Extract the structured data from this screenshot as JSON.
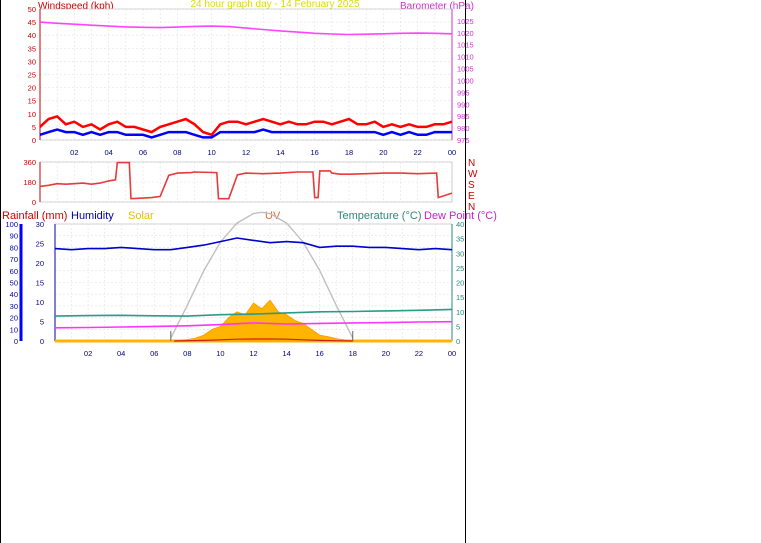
{
  "header": {
    "windspeed_label": "Windspeed (kph)",
    "title": "24 hour graph day - 14 February 2025",
    "barometer_label": "Barometer (hPa)"
  },
  "legend": {
    "rainfall": "Rainfall (mm)",
    "humidity": "Humidity",
    "solar": "Solar",
    "uv": "UV",
    "temperature": "Temperature (°C)",
    "dewpoint": "Dew Point (°C)"
  },
  "colors": {
    "grid": "#e2e2e2",
    "windspeed": "#ff0000",
    "gust": "#cc0000",
    "wind_avg": "#0000ff",
    "barometer": "#ff44ff",
    "direction": "#e83a3a",
    "humidity": "#0000cc",
    "temperature": "#2a9a8a",
    "dewpoint": "#ff33ff",
    "solar": "#ff9900",
    "solar_fill": "#ffb400",
    "uv": "#e07030",
    "solar_max": "#c0c0c0",
    "rain_axis": "#0000ff",
    "title": "#dddd00"
  },
  "chart_data": [
    {
      "type": "line",
      "name": "wind_barometer",
      "x_ticks": [
        "02",
        "04",
        "06",
        "08",
        "10",
        "12",
        "14",
        "16",
        "18",
        "20",
        "22",
        "00"
      ],
      "xlim": [
        0,
        24
      ],
      "ylim_left": [
        0,
        50
      ],
      "yticks_left": [
        "0",
        "5",
        "10",
        "15",
        "20",
        "25",
        "30",
        "35",
        "40",
        "45",
        "50"
      ],
      "ylim_right": [
        975,
        1030
      ],
      "yticks_right": [
        "975",
        "980",
        "985",
        "990",
        "995",
        "1000",
        "1005",
        "1010",
        "1015",
        "1020",
        "1025"
      ],
      "series": [
        {
          "key": "barometer",
          "x": [
            0,
            1,
            2,
            3,
            4,
            5,
            6,
            7,
            8,
            9,
            10,
            11,
            12,
            13,
            14,
            15,
            16,
            17,
            18,
            19,
            20,
            21,
            22,
            23,
            24
          ],
          "y": [
            1024.5,
            1024.0,
            1023.6,
            1023.2,
            1022.8,
            1022.5,
            1022.3,
            1022.2,
            1022.4,
            1022.7,
            1022.8,
            1022.6,
            1022.0,
            1021.4,
            1020.8,
            1020.3,
            1019.8,
            1019.5,
            1019.3,
            1019.4,
            1019.6,
            1019.8,
            1019.9,
            1019.8,
            1019.6
          ]
        },
        {
          "key": "gust",
          "x": [
            0,
            0.5,
            1,
            1.5,
            2,
            2.5,
            3,
            3.5,
            4,
            4.5,
            5,
            5.5,
            6,
            6.5,
            7,
            7.5,
            8,
            8.5,
            9,
            9.5,
            10,
            10.5,
            11,
            11.5,
            12,
            12.5,
            13,
            13.5,
            14,
            14.5,
            15,
            15.5,
            16,
            16.5,
            17,
            17.5,
            18,
            18.5,
            19,
            19.5,
            20,
            20.5,
            21,
            21.5,
            22,
            22.5,
            23,
            23.5,
            24
          ],
          "y": [
            5,
            8,
            9,
            6,
            7,
            5,
            6,
            4,
            6,
            7,
            5,
            5,
            4,
            3,
            5,
            6,
            7,
            8,
            6,
            3,
            2,
            6,
            7,
            7,
            6,
            7,
            8,
            7,
            6,
            7,
            6,
            6,
            7,
            7,
            6,
            7,
            8,
            6,
            6,
            7,
            5,
            6,
            5,
            6,
            5,
            5,
            6,
            6,
            7
          ]
        },
        {
          "key": "wind_avg",
          "x": [
            0,
            0.5,
            1,
            1.5,
            2,
            2.5,
            3,
            3.5,
            4,
            4.5,
            5,
            5.5,
            6,
            6.5,
            7,
            7.5,
            8,
            8.5,
            9,
            9.5,
            10,
            10.5,
            11,
            11.5,
            12,
            12.5,
            13,
            13.5,
            14,
            14.5,
            15,
            15.5,
            16,
            16.5,
            17,
            17.5,
            18,
            18.5,
            19,
            19.5,
            20,
            20.5,
            21,
            21.5,
            22,
            22.5,
            23,
            23.5,
            24
          ],
          "y": [
            2,
            3,
            4,
            3,
            3,
            2,
            3,
            2,
            3,
            3,
            2,
            2,
            2,
            1,
            2,
            3,
            3,
            3,
            2,
            1,
            1,
            3,
            3,
            3,
            3,
            3,
            4,
            3,
            3,
            3,
            3,
            3,
            3,
            3,
            3,
            3,
            3,
            3,
            3,
            3,
            2,
            3,
            2,
            3,
            2,
            2,
            3,
            3,
            3
          ]
        }
      ]
    },
    {
      "type": "line",
      "name": "wind_direction",
      "x_ticks": [
        "02",
        "04",
        "06",
        "08",
        "10",
        "12",
        "14",
        "16",
        "18",
        "20",
        "22",
        "00"
      ],
      "xlim": [
        0,
        24
      ],
      "ylim": [
        0,
        360
      ],
      "yticks": [
        "0",
        "180",
        "360"
      ],
      "compass": [
        "N",
        "W",
        "S",
        "E",
        "N"
      ],
      "series": [
        {
          "key": "direction",
          "x": [
            0,
            0.5,
            1,
            1.5,
            2,
            2.5,
            3,
            3.5,
            4,
            4.4,
            4.5,
            5.2,
            5.3,
            6,
            6.5,
            7,
            7.5,
            8,
            8.8,
            9,
            10.3,
            10.4,
            11,
            11.5,
            12,
            13,
            14,
            15,
            15.9,
            16,
            16.2,
            16.3,
            16.9,
            17,
            17.5,
            18,
            19,
            20,
            21,
            22,
            23.1,
            23.2,
            24
          ],
          "y": [
            140,
            150,
            165,
            160,
            165,
            170,
            160,
            170,
            190,
            200,
            355,
            355,
            30,
            35,
            40,
            50,
            240,
            260,
            265,
            270,
            265,
            30,
            30,
            245,
            260,
            255,
            260,
            270,
            270,
            40,
            40,
            280,
            280,
            260,
            250,
            250,
            255,
            260,
            260,
            255,
            260,
            40,
            80
          ]
        }
      ]
    },
    {
      "type": "line",
      "name": "weather",
      "x_ticks": [
        "02",
        "04",
        "06",
        "08",
        "10",
        "12",
        "14",
        "16",
        "18",
        "20",
        "22",
        "00"
      ],
      "xlim": [
        0,
        24
      ],
      "ylim_humidity": [
        0,
        100
      ],
      "yticks_humidity": [
        "0",
        "10",
        "20",
        "30",
        "40",
        "50",
        "60",
        "70",
        "80",
        "90",
        "100"
      ],
      "ylim_rain": [
        0,
        30
      ],
      "yticks_rain": [
        "0",
        "5",
        "10",
        "15",
        "20",
        "25",
        "30"
      ],
      "ylim_temp": [
        0,
        40
      ],
      "yticks_temp": [
        "0",
        "5",
        "10",
        "15",
        "20",
        "25",
        "30",
        "35",
        "40"
      ],
      "series": [
        {
          "key": "humidity",
          "x": [
            0,
            1,
            2,
            3,
            4,
            5,
            6,
            7,
            8,
            9,
            10,
            11,
            12,
            13,
            14,
            15,
            16,
            17,
            18,
            19,
            20,
            21,
            22,
            23,
            24
          ],
          "y": [
            79,
            78,
            79,
            79,
            80,
            79,
            78,
            78,
            80,
            82,
            85,
            88,
            86,
            84,
            85,
            84,
            80,
            81,
            81,
            80,
            80,
            79,
            78,
            79,
            78
          ]
        },
        {
          "key": "temperature",
          "x": [
            0,
            2,
            4,
            6,
            8,
            10,
            12,
            14,
            16,
            18,
            20,
            22,
            24
          ],
          "y": [
            8.5,
            8.7,
            8.8,
            8.6,
            8.5,
            9.0,
            9.2,
            9.6,
            10.0,
            10.1,
            10.3,
            10.5,
            10.8
          ]
        },
        {
          "key": "dewpoint",
          "x": [
            0,
            2,
            4,
            6,
            8,
            10,
            12,
            14,
            16,
            18,
            20,
            22,
            24
          ],
          "y": [
            4.5,
            4.6,
            4.8,
            5.0,
            5.2,
            5.6,
            6.2,
            5.8,
            6.0,
            6.2,
            6.3,
            6.5,
            6.6
          ]
        },
        {
          "key": "solar_max",
          "x": [
            7,
            8,
            9,
            10,
            11,
            12,
            12.5,
            13,
            14,
            15,
            16,
            17,
            18
          ],
          "y": [
            1.0,
            12.2,
            24.1,
            33.8,
            40.3,
            43.6,
            44.0,
            43.6,
            40.3,
            33.8,
            24.1,
            12.2,
            1.0
          ]
        },
        {
          "key": "solar",
          "x": [
            7.2,
            8,
            8.5,
            9,
            9.5,
            10,
            10.5,
            11,
            11.5,
            12,
            12.5,
            13,
            13.5,
            14,
            14.5,
            15,
            15.5,
            16,
            16.5,
            17,
            18
          ],
          "y": [
            0,
            0.5,
            1,
            2,
            4,
            5,
            8,
            10,
            9,
            13,
            11,
            14,
            10,
            9,
            7,
            6,
            4,
            2,
            1.5,
            0.8,
            0
          ]
        },
        {
          "key": "uv",
          "x": [
            7.2,
            9,
            10,
            11,
            12,
            13,
            14,
            15,
            16,
            17,
            18
          ],
          "y": [
            0,
            0.2,
            0.4,
            0.6,
            0.7,
            0.7,
            0.6,
            0.4,
            0.2,
            0.1,
            0
          ]
        }
      ]
    }
  ]
}
